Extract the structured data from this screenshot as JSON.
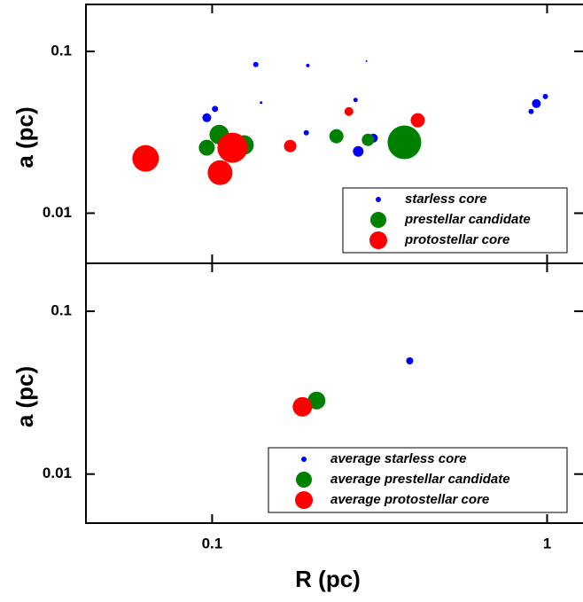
{
  "chart_data": [
    {
      "type": "scatter",
      "ylabel": "a (pc)",
      "log_x": true,
      "log_y": true,
      "xlim": [
        0.042,
        1.28
      ],
      "ylim": [
        0.0049,
        0.195
      ],
      "yticks": [
        0.01,
        0.1
      ],
      "legend": "lower right",
      "series": [
        {
          "name": "starless core",
          "color": "#0000ff",
          "x": [
            0.135,
            0.193,
            0.289,
            0.14,
            0.268,
            0.102,
            0.0964,
            0.191,
            0.273,
            0.303,
            0.929,
            0.988,
            0.896
          ],
          "values": [
            0.083,
            0.0818,
            0.0871,
            0.0482,
            0.0501,
            0.0441,
            0.0389,
            0.0314,
            0.0241,
            0.0291,
            0.0476,
            0.0526,
            0.0425
          ],
          "sizes": [
            3,
            2,
            1,
            1.5,
            2.5,
            3.5,
            5,
            3,
            6,
            5,
            5,
            3,
            3
          ]
        },
        {
          "name": "prestellar candidate",
          "color": "#008000",
          "x": [
            0.0964,
            0.105,
            0.1245,
            0.235,
            0.292,
            0.375
          ],
          "values": [
            0.0254,
            0.0306,
            0.0264,
            0.0299,
            0.0284,
            0.0274
          ],
          "sizes": [
            9,
            11,
            11,
            8,
            7,
            19
          ]
        },
        {
          "name": "protostellar core",
          "color": "#ff0000",
          "x": [
            0.0633,
            0.1056,
            0.115,
            0.171,
            0.256,
            0.411
          ],
          "values": [
            0.0218,
            0.0178,
            0.0254,
            0.026,
            0.0425,
            0.0375
          ],
          "sizes": [
            15,
            14,
            17,
            7,
            5,
            8
          ]
        }
      ]
    },
    {
      "type": "scatter",
      "ylabel": "a (pc)",
      "xlabel": "R (pc)",
      "log_x": true,
      "log_y": true,
      "xlim": [
        0.042,
        1.28
      ],
      "xticks": [
        0.1,
        1
      ],
      "ylim": [
        0.005,
        0.197
      ],
      "yticks": [
        0.01,
        0.1
      ],
      "legend": "lower right",
      "series": [
        {
          "name": "average starless core",
          "color": "#0000ff",
          "x": [
            0.389
          ],
          "values": [
            0.0496
          ],
          "sizes": [
            4
          ]
        },
        {
          "name": "average prestellar candidate",
          "color": "#008000",
          "x": [
            0.205
          ],
          "values": [
            0.0283
          ],
          "sizes": [
            10
          ]
        },
        {
          "name": "average protostellar core",
          "color": "#ff0000",
          "x": [
            0.186
          ],
          "values": [
            0.0259
          ],
          "sizes": [
            11
          ]
        }
      ]
    }
  ]
}
